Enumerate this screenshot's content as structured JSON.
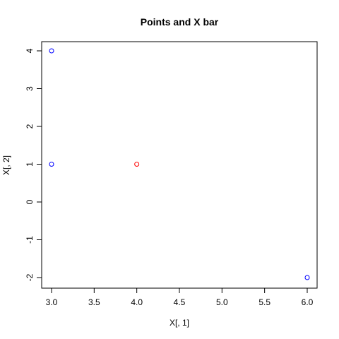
{
  "chart_data": {
    "type": "scatter",
    "title": "Points and X bar",
    "xlabel": "X[, 1]",
    "ylabel": "X[, 2]",
    "xlim": [
      3.0,
      6.0
    ],
    "ylim": [
      -2,
      4
    ],
    "x_ticks": [
      "3.0",
      "3.5",
      "4.0",
      "4.5",
      "5.0",
      "5.5",
      "6.0"
    ],
    "y_ticks": [
      "-2",
      "-1",
      "0",
      "1",
      "2",
      "3",
      "4"
    ],
    "grid": false,
    "legend": "none",
    "marker": "open-circle",
    "series": [
      {
        "color": "#0000ff",
        "points": [
          {
            "x": 3,
            "y": 4
          },
          {
            "x": 3,
            "y": 1
          },
          {
            "x": 6,
            "y": -2
          }
        ]
      },
      {
        "color": "#ff0000",
        "points": [
          {
            "x": 4,
            "y": 1
          }
        ]
      }
    ]
  }
}
